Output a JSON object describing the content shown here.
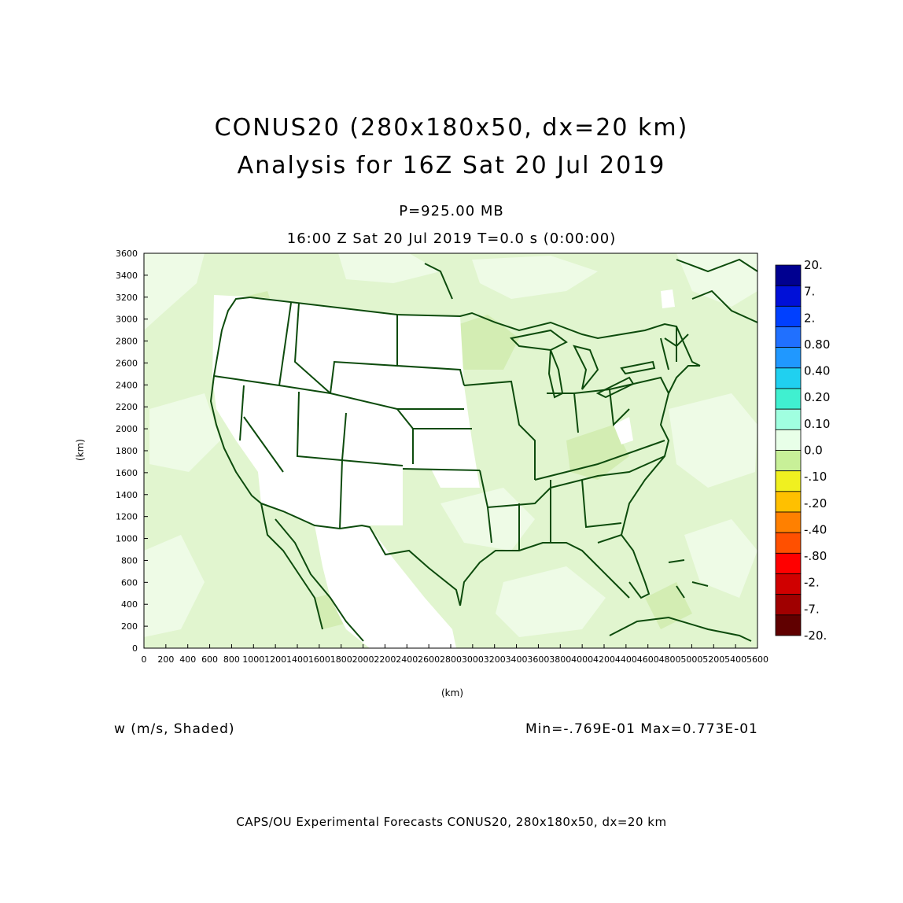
{
  "header": {
    "title_line1": "CONUS20 (280x180x50, dx=20 km)",
    "title_line2": "Analysis for 16Z Sat 20 Jul 2019",
    "level": "P=925.00 MB",
    "time": "16:00 Z Sat 20 Jul 2019    T=0.0 s (0:00:00)"
  },
  "axes": {
    "x_label": "(km)",
    "y_label": "(km)",
    "x_range": [
      0,
      5600
    ],
    "y_range": [
      0,
      3600
    ],
    "x_ticks": [
      0,
      200,
      400,
      600,
      800,
      1000,
      1200,
      1400,
      1600,
      1800,
      2000,
      2200,
      2400,
      2600,
      2800,
      3000,
      3200,
      3400,
      3600,
      3800,
      4000,
      4200,
      4400,
      4600,
      4800,
      5000,
      5200,
      5400,
      5600
    ],
    "x_tick_labels": [
      "0",
      "200",
      "400",
      "600",
      "800",
      "1000",
      "1200",
      "1400",
      "1600",
      "1800",
      "2000",
      "2200",
      "2400",
      "2600",
      "2800",
      "3000",
      "3200",
      "3400",
      "3600",
      "3800",
      "4000",
      "4200",
      "4400",
      "4600",
      "4800",
      "5000",
      "5200",
      "5400",
      "5600"
    ],
    "y_ticks": [
      0,
      200,
      400,
      600,
      800,
      1000,
      1200,
      1400,
      1600,
      1800,
      2000,
      2200,
      2400,
      2600,
      2800,
      3000,
      3200,
      3400,
      3600
    ],
    "y_tick_labels": [
      "0",
      "200",
      "400",
      "600",
      "800",
      "1000",
      "1200",
      "1400",
      "1600",
      "1800",
      "2000",
      "2200",
      "2400",
      "2600",
      "2800",
      "3000",
      "3200",
      "3400",
      "3600"
    ]
  },
  "colorbar": {
    "labels": [
      "20.",
      "7.",
      "2.",
      "0.80",
      "0.40",
      "0.20",
      "0.10",
      "0.0",
      "-.10",
      "-.20",
      "-.40",
      "-.80",
      "-2.",
      "-7.",
      "-20."
    ],
    "colors": [
      "#000090",
      "#0010d8",
      "#0040ff",
      "#2070ff",
      "#2098ff",
      "#20d0f0",
      "#40f0d0",
      "#a0ffe0",
      "#e8ffe8",
      "#c8f098",
      "#f0f020",
      "#ffc000",
      "#ff8000",
      "#ff5000",
      "#ff0000",
      "#d00000",
      "#a00000",
      "#600000"
    ]
  },
  "field": {
    "name_label": "w (m/s, Shaded)",
    "minmax": "Min=-.769E-01 Max=0.773E-01",
    "fill_colors": {
      "background": "#e1f5cf",
      "patch_light": "#eefbe6",
      "patch_green": "#d3edb3",
      "zero_band": "#ffffff"
    },
    "map_line_color": "#0d4b0d"
  },
  "footer": {
    "text": "CAPS/OU Experimental Forecasts  CONUS20, 280x180x50, dx=20 km"
  }
}
